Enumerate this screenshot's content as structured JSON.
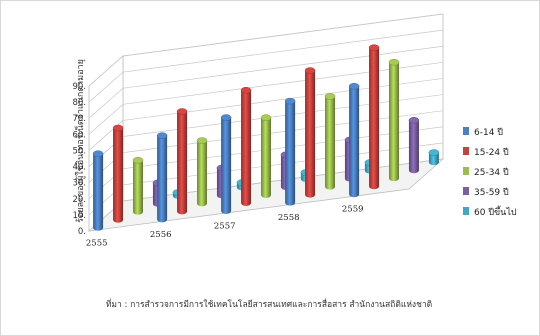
{
  "chart_data": {
    "type": "bar",
    "ylabel": "ร้อยละของผู้ใช้อินเทอร์เน็ตจำแนกตามอายุ",
    "source": "ที่มา : การสำรวจการมีการใช้เทคโนโลยีสารสนเทศและการสื่อสาร สำนักงานสถิติแห่งชาติ",
    "yticks": [
      "0.",
      "10.",
      "20.",
      "30.",
      "40.",
      "50.",
      "60.",
      "70.",
      "80.",
      "90."
    ],
    "ylim": [
      0,
      90
    ],
    "grid": true,
    "legend_position": "right",
    "categories": [
      "2555",
      "2556",
      "2557",
      "2558",
      "2559"
    ],
    "series": [
      {
        "name": "6-14 ปี",
        "color": "#4a7fc1",
        "values": [
          46,
          52,
          58,
          63,
          67
        ]
      },
      {
        "name": "15-24 ปี",
        "color": "#c9403c",
        "values": [
          57,
          62,
          70,
          77,
          86
        ]
      },
      {
        "name": "25-34 ปี",
        "color": "#9bbd4d",
        "values": [
          32,
          39,
          48,
          56,
          72
        ]
      },
      {
        "name": "35-59 ปี",
        "color": "#7a5fa3",
        "values": [
          13,
          17,
          20,
          24,
          31
        ]
      },
      {
        "name": "60 ปีขึ้นไป",
        "color": "#3fa9c5",
        "values": [
          2,
          3,
          4,
          5,
          6
        ]
      }
    ]
  }
}
